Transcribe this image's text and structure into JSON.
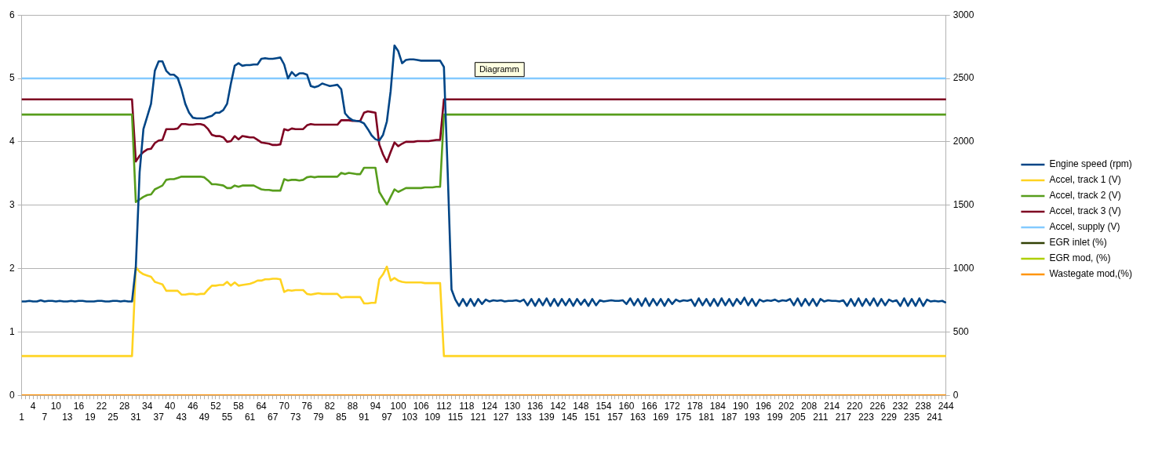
{
  "chart_data": {
    "type": "line",
    "annotations": [
      "Diagramm"
    ],
    "categories": [
      "1",
      null,
      null,
      "4",
      null,
      null,
      "7",
      null,
      null,
      "10",
      null,
      null,
      "13",
      null,
      null,
      "16",
      null,
      null,
      "19",
      null,
      null,
      "22",
      null,
      null,
      "25",
      null,
      null,
      "28",
      null,
      null,
      "31",
      null,
      null,
      "34",
      null,
      null,
      "37",
      null,
      null,
      "40",
      null,
      null,
      "43",
      null,
      null,
      "46",
      null,
      null,
      "49",
      null,
      null,
      "52",
      null,
      null,
      "55",
      null,
      null,
      "58",
      null,
      null,
      "61",
      null,
      null,
      "64",
      null,
      null,
      "67",
      null,
      null,
      "70",
      null,
      null,
      "73",
      null,
      null,
      "76",
      null,
      null,
      "79",
      null,
      null,
      "82",
      null,
      null,
      "85",
      null,
      null,
      "88",
      null,
      null,
      "91",
      null,
      null,
      "94",
      null,
      null,
      "97",
      null,
      null,
      "100",
      null,
      null,
      "103",
      null,
      null,
      "106",
      null,
      null,
      "109",
      null,
      null,
      "112",
      null,
      null,
      "115",
      null,
      null,
      "118",
      null,
      null,
      "121",
      null,
      null,
      "124",
      null,
      null,
      "127",
      null,
      null,
      "130",
      null,
      null,
      "133",
      null,
      null,
      "136",
      null,
      null,
      "139",
      null,
      null,
      "142",
      null,
      null,
      "145",
      null,
      null,
      "148",
      null,
      null,
      "151",
      null,
      null,
      "154",
      null,
      null,
      "157",
      null,
      null,
      "160",
      null,
      null,
      "163",
      null,
      null,
      "166",
      null,
      null,
      "169",
      null,
      null,
      "172",
      null,
      null,
      "175",
      null,
      null,
      "178",
      null,
      null,
      "181",
      null,
      null,
      "184",
      null,
      null,
      "187",
      null,
      null,
      "190",
      null,
      null,
      "193",
      null,
      null,
      "196",
      null,
      null,
      "199",
      null,
      null,
      "202",
      null,
      null,
      "205",
      null,
      null,
      "208",
      null,
      null,
      "211",
      null,
      null,
      "214",
      null,
      null,
      "217",
      null,
      null,
      "220",
      null,
      null,
      "223",
      null,
      null,
      "226",
      null,
      null,
      "229",
      null,
      null,
      "232",
      null,
      null,
      "235",
      null,
      null,
      "238",
      null,
      null,
      "241",
      null,
      null,
      "244"
    ],
    "ylim": [
      0,
      6
    ],
    "yticks": [
      0,
      1,
      2,
      3,
      4,
      5,
      6
    ],
    "y2lim": [
      0,
      3000
    ],
    "y2ticks": [
      0,
      500,
      1000,
      1500,
      2000,
      2500,
      3000
    ],
    "grid": "y",
    "legend": "right",
    "series": [
      {
        "name": "Engine speed (rpm)",
        "color": "#004586",
        "axis": "y2",
        "values": [
          740,
          740,
          745,
          740,
          740,
          750,
          740,
          745,
          745,
          740,
          745,
          740,
          740,
          745,
          740,
          745,
          745,
          740,
          740,
          740,
          745,
          745,
          740,
          740,
          745,
          745,
          740,
          745,
          740,
          740,
          1015,
          1760,
          2100,
          2200,
          2300,
          2560,
          2635,
          2635,
          2560,
          2530,
          2530,
          2505,
          2415,
          2300,
          2230,
          2190,
          2185,
          2185,
          2185,
          2195,
          2205,
          2230,
          2230,
          2250,
          2300,
          2460,
          2600,
          2620,
          2600,
          2605,
          2605,
          2610,
          2610,
          2655,
          2660,
          2655,
          2655,
          2660,
          2665,
          2610,
          2500,
          2550,
          2520,
          2540,
          2540,
          2530,
          2440,
          2430,
          2440,
          2460,
          2450,
          2440,
          2445,
          2450,
          2415,
          2225,
          2190,
          2170,
          2165,
          2160,
          2145,
          2100,
          2050,
          2020,
          2010,
          2055,
          2160,
          2400,
          2760,
          2715,
          2620,
          2645,
          2650,
          2650,
          2645,
          2640,
          2640,
          2640,
          2640,
          2640,
          2640,
          2590,
          1755,
          835,
          755,
          705,
          760,
          705,
          760,
          705,
          760,
          720,
          755,
          740,
          750,
          745,
          750,
          740,
          745,
          745,
          750,
          740,
          755,
          710,
          760,
          705,
          760,
          710,
          765,
          705,
          760,
          705,
          760,
          710,
          760,
          705,
          760,
          715,
          755,
          705,
          760,
          710,
          750,
          740,
          745,
          750,
          745,
          745,
          750,
          720,
          765,
          710,
          760,
          705,
          765,
          705,
          760,
          710,
          760,
          705,
          760,
          720,
          755,
          740,
          750,
          745,
          755,
          705,
          765,
          710,
          760,
          705,
          760,
          705,
          765,
          710,
          760,
          705,
          760,
          720,
          770,
          710,
          760,
          705,
          755,
          740,
          750,
          745,
          755,
          740,
          750,
          745,
          760,
          710,
          765,
          705,
          760,
          710,
          760,
          705,
          760,
          740,
          750,
          745,
          745,
          740,
          750,
          705,
          760,
          705,
          765,
          705,
          760,
          710,
          765,
          705,
          760,
          710,
          755,
          740,
          750,
          705,
          765,
          705,
          760,
          705,
          765,
          705,
          755,
          740,
          745,
          740,
          745,
          730
        ]
      },
      {
        "name": "Accel, track 1 (V)",
        "color": "#ffd320",
        "values": [
          0.62,
          0.62,
          0.62,
          0.62,
          0.62,
          0.62,
          0.62,
          0.62,
          0.62,
          0.62,
          0.62,
          0.62,
          0.62,
          0.62,
          0.62,
          0.62,
          0.62,
          0.62,
          0.62,
          0.62,
          0.62,
          0.62,
          0.62,
          0.62,
          0.62,
          0.62,
          0.62,
          0.62,
          0.62,
          0.62,
          2.02,
          1.95,
          1.91,
          1.89,
          1.87,
          1.79,
          1.77,
          1.75,
          1.65,
          1.65,
          1.65,
          1.65,
          1.59,
          1.59,
          1.6,
          1.6,
          1.59,
          1.6,
          1.6,
          1.67,
          1.73,
          1.73,
          1.74,
          1.74,
          1.79,
          1.73,
          1.78,
          1.73,
          1.74,
          1.75,
          1.76,
          1.78,
          1.81,
          1.81,
          1.83,
          1.83,
          1.84,
          1.84,
          1.83,
          1.63,
          1.66,
          1.65,
          1.66,
          1.66,
          1.66,
          1.6,
          1.59,
          1.6,
          1.61,
          1.6,
          1.6,
          1.6,
          1.6,
          1.6,
          1.54,
          1.55,
          1.55,
          1.55,
          1.55,
          1.55,
          1.45,
          1.45,
          1.46,
          1.46,
          1.83,
          1.91,
          2.03,
          1.81,
          1.85,
          1.81,
          1.79,
          1.78,
          1.78,
          1.78,
          1.78,
          1.78,
          1.77,
          1.77,
          1.77,
          1.77,
          1.77,
          0.62,
          0.62,
          0.62,
          0.62,
          0.62,
          0.62,
          0.62,
          0.62,
          0.62,
          0.62,
          0.62,
          0.62,
          0.62,
          0.62,
          0.62,
          0.62,
          0.62,
          0.62,
          0.62,
          0.62,
          0.62,
          0.62,
          0.62,
          0.62,
          0.62,
          0.62,
          0.62,
          0.62,
          0.62,
          0.62,
          0.62,
          0.62,
          0.62,
          0.62,
          0.62,
          0.62,
          0.62,
          0.62,
          0.62,
          0.62,
          0.62,
          0.62,
          0.62,
          0.62,
          0.62,
          0.62,
          0.62,
          0.62,
          0.62,
          0.62,
          0.62,
          0.62,
          0.62,
          0.62,
          0.62,
          0.62,
          0.62,
          0.62,
          0.62,
          0.62,
          0.62,
          0.62,
          0.62,
          0.62,
          0.62,
          0.62,
          0.62,
          0.62,
          0.62,
          0.62,
          0.62,
          0.62,
          0.62,
          0.62,
          0.62,
          0.62,
          0.62,
          0.62,
          0.62,
          0.62,
          0.62,
          0.62,
          0.62,
          0.62,
          0.62,
          0.62,
          0.62,
          0.62,
          0.62,
          0.62,
          0.62,
          0.62,
          0.62,
          0.62,
          0.62,
          0.62,
          0.62,
          0.62,
          0.62,
          0.62,
          0.62,
          0.62,
          0.62,
          0.62,
          0.62,
          0.62,
          0.62,
          0.62,
          0.62,
          0.62,
          0.62,
          0.62,
          0.62,
          0.62,
          0.62,
          0.62,
          0.62,
          0.62,
          0.62,
          0.62,
          0.62,
          0.62,
          0.62,
          0.62,
          0.62,
          0.62,
          0.62,
          0.62,
          0.62,
          0.62,
          0.62,
          0.62,
          0.62
        ]
      },
      {
        "name": "Accel, track 2 (V)",
        "color": "#579d1c",
        "values": [
          4.43,
          4.43,
          4.43,
          4.43,
          4.43,
          4.43,
          4.43,
          4.43,
          4.43,
          4.43,
          4.43,
          4.43,
          4.43,
          4.43,
          4.43,
          4.43,
          4.43,
          4.43,
          4.43,
          4.43,
          4.43,
          4.43,
          4.43,
          4.43,
          4.43,
          4.43,
          4.43,
          4.43,
          4.43,
          4.43,
          3.05,
          3.09,
          3.13,
          3.16,
          3.17,
          3.25,
          3.28,
          3.31,
          3.4,
          3.41,
          3.41,
          3.43,
          3.45,
          3.45,
          3.45,
          3.45,
          3.45,
          3.45,
          3.44,
          3.39,
          3.33,
          3.33,
          3.32,
          3.31,
          3.27,
          3.27,
          3.31,
          3.29,
          3.31,
          3.31,
          3.31,
          3.31,
          3.28,
          3.25,
          3.24,
          3.24,
          3.23,
          3.23,
          3.23,
          3.41,
          3.39,
          3.4,
          3.4,
          3.39,
          3.4,
          3.44,
          3.45,
          3.44,
          3.45,
          3.45,
          3.45,
          3.45,
          3.45,
          3.45,
          3.51,
          3.49,
          3.51,
          3.5,
          3.49,
          3.49,
          3.59,
          3.59,
          3.59,
          3.59,
          3.21,
          3.11,
          3.01,
          3.13,
          3.25,
          3.21,
          3.24,
          3.27,
          3.27,
          3.27,
          3.27,
          3.27,
          3.28,
          3.28,
          3.28,
          3.29,
          3.29,
          4.43,
          4.43,
          4.43,
          4.43,
          4.43,
          4.43,
          4.43,
          4.43,
          4.43,
          4.43,
          4.43,
          4.43,
          4.43,
          4.43,
          4.43,
          4.43,
          4.43,
          4.43,
          4.43,
          4.43,
          4.43,
          4.43,
          4.43,
          4.43,
          4.43,
          4.43,
          4.43,
          4.43,
          4.43,
          4.43,
          4.43,
          4.43,
          4.43,
          4.43,
          4.43,
          4.43,
          4.43,
          4.43,
          4.43,
          4.43,
          4.43,
          4.43,
          4.43,
          4.43,
          4.43,
          4.43,
          4.43,
          4.43,
          4.43,
          4.43,
          4.43,
          4.43,
          4.43,
          4.43,
          4.43,
          4.43,
          4.43,
          4.43,
          4.43,
          4.43,
          4.43,
          4.43,
          4.43,
          4.43,
          4.43,
          4.43,
          4.43,
          4.43,
          4.43,
          4.43,
          4.43,
          4.43,
          4.43,
          4.43,
          4.43,
          4.43,
          4.43,
          4.43,
          4.43,
          4.43,
          4.43,
          4.43,
          4.43,
          4.43,
          4.43,
          4.43,
          4.43,
          4.43,
          4.43,
          4.43,
          4.43,
          4.43,
          4.43,
          4.43,
          4.43,
          4.43,
          4.43,
          4.43,
          4.43,
          4.43,
          4.43,
          4.43,
          4.43,
          4.43,
          4.43,
          4.43,
          4.43,
          4.43,
          4.43,
          4.43,
          4.43,
          4.43,
          4.43,
          4.43,
          4.43,
          4.43,
          4.43,
          4.43,
          4.43,
          4.43,
          4.43,
          4.43,
          4.43,
          4.43,
          4.43,
          4.43,
          4.43,
          4.43,
          4.43,
          4.43,
          4.43,
          4.43,
          4.43
        ]
      },
      {
        "name": "Accel, track 3 (V)",
        "color": "#7e0021",
        "values": [
          4.67,
          4.67,
          4.67,
          4.67,
          4.67,
          4.67,
          4.67,
          4.67,
          4.67,
          4.67,
          4.67,
          4.67,
          4.67,
          4.67,
          4.67,
          4.67,
          4.67,
          4.67,
          4.67,
          4.67,
          4.67,
          4.67,
          4.67,
          4.67,
          4.67,
          4.67,
          4.67,
          4.67,
          4.67,
          4.67,
          3.69,
          3.78,
          3.84,
          3.88,
          3.89,
          3.98,
          4.02,
          4.03,
          4.2,
          4.2,
          4.2,
          4.21,
          4.28,
          4.28,
          4.27,
          4.27,
          4.28,
          4.28,
          4.26,
          4.2,
          4.11,
          4.09,
          4.09,
          4.07,
          4.0,
          4.01,
          4.09,
          4.04,
          4.09,
          4.08,
          4.07,
          4.07,
          4.03,
          3.99,
          3.98,
          3.97,
          3.95,
          3.95,
          3.96,
          4.2,
          4.18,
          4.21,
          4.2,
          4.2,
          4.2,
          4.26,
          4.28,
          4.27,
          4.27,
          4.27,
          4.27,
          4.27,
          4.27,
          4.27,
          4.34,
          4.34,
          4.34,
          4.33,
          4.33,
          4.33,
          4.46,
          4.48,
          4.47,
          4.46,
          3.96,
          3.8,
          3.68,
          3.84,
          3.99,
          3.93,
          3.97,
          4.0,
          4.0,
          4.0,
          4.01,
          4.01,
          4.01,
          4.01,
          4.02,
          4.03,
          4.03,
          4.67,
          4.67,
          4.67,
          4.67,
          4.67,
          4.67,
          4.67,
          4.67,
          4.67,
          4.67,
          4.67,
          4.67,
          4.67,
          4.67,
          4.67,
          4.67,
          4.67,
          4.67,
          4.67,
          4.67,
          4.67,
          4.67,
          4.67,
          4.67,
          4.67,
          4.67,
          4.67,
          4.67,
          4.67,
          4.67,
          4.67,
          4.67,
          4.67,
          4.67,
          4.67,
          4.67,
          4.67,
          4.67,
          4.67,
          4.67,
          4.67,
          4.67,
          4.67,
          4.67,
          4.67,
          4.67,
          4.67,
          4.67,
          4.67,
          4.67,
          4.67,
          4.67,
          4.67,
          4.67,
          4.67,
          4.67,
          4.67,
          4.67,
          4.67,
          4.67,
          4.67,
          4.67,
          4.67,
          4.67,
          4.67,
          4.67,
          4.67,
          4.67,
          4.67,
          4.67,
          4.67,
          4.67,
          4.67,
          4.67,
          4.67,
          4.67,
          4.67,
          4.67,
          4.67,
          4.67,
          4.67,
          4.67,
          4.67,
          4.67,
          4.67,
          4.67,
          4.67,
          4.67,
          4.67,
          4.67,
          4.67,
          4.67,
          4.67,
          4.67,
          4.67,
          4.67,
          4.67,
          4.67,
          4.67,
          4.67,
          4.67,
          4.67,
          4.67,
          4.67,
          4.67,
          4.67,
          4.67,
          4.67,
          4.67,
          4.67,
          4.67,
          4.67,
          4.67,
          4.67,
          4.67,
          4.67,
          4.67,
          4.67,
          4.67,
          4.67,
          4.67,
          4.67,
          4.67,
          4.67,
          4.67,
          4.67,
          4.67,
          4.67,
          4.67,
          4.67,
          4.67,
          4.67,
          4.67
        ]
      },
      {
        "name": "Accel, supply (V)",
        "color": "#83caff",
        "values": [
          5,
          5,
          5,
          5,
          5,
          5,
          5,
          5,
          5,
          5,
          5,
          5,
          5,
          5,
          5,
          5,
          5,
          5,
          5,
          5,
          5,
          5,
          5,
          5,
          5,
          5,
          5,
          5,
          5,
          5,
          5,
          5,
          5,
          5,
          5,
          5,
          5,
          5,
          5,
          5,
          5,
          5,
          5,
          5,
          5,
          5,
          5,
          5,
          5,
          5,
          5,
          5,
          5,
          5,
          5,
          5,
          5,
          5,
          5,
          5,
          5,
          5,
          5,
          5,
          5,
          5,
          5,
          5,
          5,
          5,
          5,
          5,
          5,
          5,
          5,
          5,
          5,
          5,
          5,
          5,
          5,
          5,
          5,
          5,
          5,
          5,
          5,
          5,
          5,
          5,
          5,
          5,
          5,
          5,
          5,
          5,
          5,
          5,
          5,
          5,
          5,
          5,
          5,
          5,
          5,
          5,
          5,
          5,
          5,
          5,
          5,
          5,
          5,
          5,
          5,
          5,
          5,
          5,
          5,
          5,
          5,
          5,
          5,
          5,
          5,
          5,
          5,
          5,
          5,
          5,
          5,
          5,
          5,
          5,
          5,
          5,
          5,
          5,
          5,
          5,
          5,
          5,
          5,
          5,
          5,
          5,
          5,
          5,
          5,
          5,
          5,
          5,
          5,
          5,
          5,
          5,
          5,
          5,
          5,
          5,
          5,
          5,
          5,
          5,
          5,
          5,
          5,
          5,
          5,
          5,
          5,
          5,
          5,
          5,
          5,
          5,
          5,
          5,
          5,
          5,
          5,
          5,
          5,
          5,
          5,
          5,
          5,
          5,
          5,
          5,
          5,
          5,
          5,
          5,
          5,
          5,
          5,
          5,
          5,
          5,
          5,
          5,
          5,
          5,
          5,
          5,
          5,
          5,
          5,
          5,
          5,
          5,
          5,
          5,
          5,
          5,
          5,
          5,
          5,
          5,
          5,
          5,
          5,
          5,
          5,
          5,
          5,
          5,
          5,
          5,
          5,
          5,
          5,
          5,
          5,
          5,
          5,
          5,
          5,
          5,
          5,
          5,
          5,
          5
        ]
      },
      {
        "name": "EGR inlet (%)",
        "color": "#314004",
        "values": [
          null,
          null,
          null,
          null,
          null,
          null,
          null,
          null,
          null,
          null,
          null,
          null,
          null,
          null,
          null,
          null,
          null,
          null,
          null,
          null,
          null,
          null,
          null,
          null,
          null,
          null,
          null,
          null,
          null,
          null,
          null,
          null,
          null,
          null,
          null,
          null,
          null,
          null,
          null,
          null,
          null,
          null,
          null,
          null,
          null,
          null,
          null,
          null,
          null,
          null,
          null,
          null,
          null,
          null,
          null,
          null,
          null,
          null,
          null,
          null,
          null,
          null,
          null,
          null,
          null,
          null,
          null,
          null,
          null,
          null,
          null,
          null,
          null,
          null,
          null,
          null,
          null,
          null,
          null,
          null,
          null,
          null,
          null,
          null,
          null,
          null,
          null,
          null,
          null,
          null,
          null,
          null,
          null,
          null,
          null,
          null,
          null,
          null,
          null,
          null,
          null,
          null,
          null,
          null,
          null,
          null,
          null,
          null,
          null,
          null,
          null,
          null,
          null,
          null,
          null,
          null,
          null,
          null,
          null,
          null,
          null,
          null,
          null,
          null,
          null,
          null,
          null,
          null,
          null,
          null,
          null,
          null,
          null,
          null,
          null,
          null,
          null,
          null,
          null,
          null,
          null,
          null,
          null,
          null,
          null,
          null,
          null,
          null,
          null,
          null,
          null,
          null,
          null,
          null,
          null,
          null,
          null,
          null,
          null,
          null,
          null,
          null,
          null,
          null,
          null,
          null,
          null,
          null,
          null,
          null,
          null,
          null,
          null,
          null,
          null,
          null,
          null,
          null,
          null,
          null,
          null,
          null,
          null,
          null,
          null,
          null,
          null,
          null,
          null,
          null,
          null,
          null,
          null,
          null,
          null,
          null,
          null,
          null,
          null,
          null,
          null,
          null,
          null,
          null,
          null,
          null,
          null,
          null,
          null,
          null,
          null,
          null,
          null,
          null,
          null,
          null,
          null,
          null,
          null,
          null,
          null,
          null,
          null,
          null,
          null,
          null,
          null,
          null,
          null,
          null,
          null,
          null,
          null,
          null,
          null,
          null,
          null,
          null,
          null,
          null,
          null,
          null,
          null,
          null
        ]
      },
      {
        "name": "EGR mod, (%)",
        "color": "#aecf00",
        "values": [
          null,
          null,
          null,
          null,
          null,
          null,
          null,
          null,
          null,
          null,
          null,
          null,
          null,
          null,
          null,
          null,
          null,
          null,
          null,
          null,
          null,
          null,
          null,
          null,
          null,
          null,
          null,
          null,
          null,
          null,
          null,
          null,
          null,
          null,
          null,
          null,
          null,
          null,
          null,
          null,
          null,
          null,
          null,
          null,
          null,
          null,
          null,
          null,
          null,
          null,
          null,
          null,
          null,
          null,
          null,
          null,
          null,
          null,
          null,
          null,
          null,
          null,
          null,
          null,
          null,
          null,
          null,
          null,
          null,
          null,
          null,
          null,
          null,
          null,
          null,
          null,
          null,
          null,
          null,
          null,
          null,
          null,
          null,
          null,
          null,
          null,
          null,
          null,
          null,
          null,
          null,
          null,
          null,
          null,
          null,
          null,
          null,
          null,
          null,
          null,
          null,
          null,
          null,
          null,
          null,
          null,
          null,
          null,
          null,
          null,
          null,
          null,
          null,
          null,
          null,
          null,
          null,
          null,
          null,
          null,
          null,
          null,
          null,
          null,
          null,
          null,
          null,
          null,
          null,
          null,
          null,
          null,
          null,
          null,
          null,
          null,
          null,
          null,
          null,
          null,
          null,
          null,
          null,
          null,
          null,
          null,
          null,
          null,
          null,
          null,
          null,
          null,
          null,
          null,
          null,
          null,
          null,
          null,
          null,
          null,
          null,
          null,
          null,
          null,
          null,
          null,
          null,
          null,
          null,
          null,
          null,
          null,
          null,
          null,
          null,
          null,
          null,
          null,
          null,
          null,
          null,
          null,
          null,
          null,
          null,
          null,
          null,
          null,
          null,
          null,
          null,
          null,
          null,
          null,
          null,
          null,
          null,
          null,
          null,
          null,
          null,
          null,
          null,
          null,
          null,
          null,
          null,
          null,
          null,
          null,
          null,
          null,
          null,
          null,
          null,
          null,
          null,
          null,
          null,
          null,
          null,
          null,
          null,
          null,
          null,
          null,
          null,
          null,
          null,
          null,
          null,
          null,
          null,
          null,
          null,
          null,
          null,
          null,
          null,
          null,
          null,
          null,
          null,
          null
        ]
      },
      {
        "name": "Wastegate mod,(%)",
        "color": "#ff950e",
        "values": [
          0,
          0,
          0,
          0,
          0,
          0,
          0,
          0,
          0,
          0,
          0,
          0,
          0,
          0,
          0,
          0,
          0,
          0,
          0,
          0,
          0,
          0,
          0,
          0,
          0,
          0,
          0,
          0,
          0,
          0,
          0,
          0,
          0,
          0,
          0,
          0,
          0,
          0,
          0,
          0,
          0,
          0,
          0,
          0,
          0,
          0,
          0,
          0,
          0,
          0,
          0,
          0,
          0,
          0,
          0,
          0,
          0,
          0,
          0,
          0,
          0,
          0,
          0,
          0,
          0,
          0,
          0,
          0,
          0,
          0,
          0,
          0,
          0,
          0,
          0,
          0,
          0,
          0,
          0,
          0,
          0,
          0,
          0,
          0,
          0,
          0,
          0,
          0,
          0,
          0,
          0,
          0,
          0,
          0,
          0,
          0,
          0,
          0,
          0,
          0,
          0,
          0,
          0,
          0,
          0,
          0,
          0,
          0,
          0,
          0,
          0,
          0,
          0,
          0,
          0,
          0,
          0,
          0,
          0,
          0,
          0,
          0,
          0,
          0,
          0,
          0,
          0,
          0,
          0,
          0,
          0,
          0,
          0,
          0,
          0,
          0,
          0,
          0,
          0,
          0,
          0,
          0,
          0,
          0,
          0,
          0,
          0,
          0,
          0,
          0,
          0,
          0,
          0,
          0,
          0,
          0,
          0,
          0,
          0,
          0,
          0,
          0,
          0,
          0,
          0,
          0,
          0,
          0,
          0,
          0,
          0,
          0,
          0,
          0,
          0,
          0,
          0,
          0,
          0,
          0,
          0,
          0,
          0,
          0,
          0,
          0,
          0,
          0,
          0,
          0,
          0,
          0,
          0,
          0,
          0,
          0,
          0,
          0,
          0,
          0,
          0,
          0,
          0,
          0,
          0,
          0,
          0,
          0,
          0,
          0,
          0,
          0,
          0,
          0,
          0,
          0,
          0,
          0,
          0,
          0,
          0,
          0,
          0,
          0,
          0,
          0,
          0,
          0,
          0,
          0,
          0,
          0,
          0,
          0,
          0,
          0,
          0,
          0,
          0,
          0,
          0,
          0,
          0,
          0
        ]
      }
    ]
  }
}
